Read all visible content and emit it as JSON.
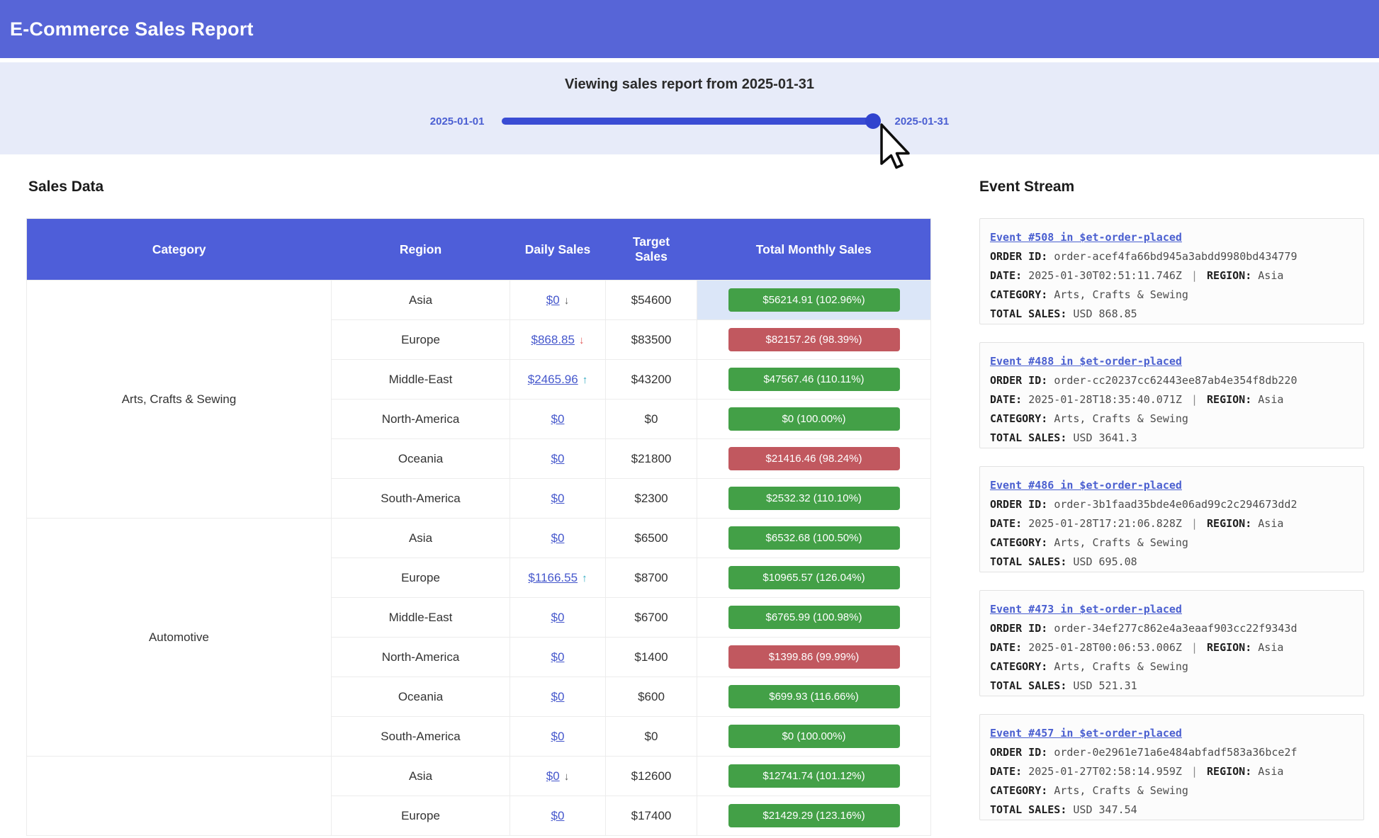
{
  "header": {
    "title": "E-Commerce Sales Report"
  },
  "slider": {
    "title": "Viewing sales report from 2025-01-31",
    "min_label": "2025-01-01",
    "max_label": "2025-01-31",
    "value": "2025-01-31"
  },
  "sales": {
    "heading": "Sales Data",
    "columns": [
      "Category",
      "Region",
      "Daily Sales",
      "Target Sales",
      "Total Monthly Sales"
    ],
    "categories": [
      {
        "label": "Arts, Crafts & Sewing",
        "start": 0,
        "span": 6
      },
      {
        "label": "Automotive",
        "start": 6,
        "span": 6
      },
      {
        "label": "",
        "start": 12,
        "span": 2
      }
    ],
    "rows": [
      {
        "region": "Asia",
        "daily": "$0",
        "trend": "down",
        "trend_color": "gray",
        "target": "$54600",
        "total": "$56214.91 (102.96%)",
        "status": "green",
        "highlight": true
      },
      {
        "region": "Europe",
        "daily": "$868.85",
        "trend": "down",
        "trend_color": "red",
        "target": "$83500",
        "total": "$82157.26 (98.39%)",
        "status": "red",
        "highlight": false
      },
      {
        "region": "Middle-East",
        "daily": "$2465.96",
        "trend": "up",
        "trend_color": "teal",
        "target": "$43200",
        "total": "$47567.46 (110.11%)",
        "status": "green",
        "highlight": false
      },
      {
        "region": "North-America",
        "daily": "$0",
        "trend": null,
        "trend_color": null,
        "target": "$0",
        "total": "$0 (100.00%)",
        "status": "green",
        "highlight": false
      },
      {
        "region": "Oceania",
        "daily": "$0",
        "trend": null,
        "trend_color": null,
        "target": "$21800",
        "total": "$21416.46 (98.24%)",
        "status": "red",
        "highlight": false
      },
      {
        "region": "South-America",
        "daily": "$0",
        "trend": null,
        "trend_color": null,
        "target": "$2300",
        "total": "$2532.32 (110.10%)",
        "status": "green",
        "highlight": false
      },
      {
        "region": "Asia",
        "daily": "$0",
        "trend": null,
        "trend_color": null,
        "target": "$6500",
        "total": "$6532.68 (100.50%)",
        "status": "green",
        "highlight": false
      },
      {
        "region": "Europe",
        "daily": "$1166.55",
        "trend": "up",
        "trend_color": "teal",
        "target": "$8700",
        "total": "$10965.57 (126.04%)",
        "status": "green",
        "highlight": false
      },
      {
        "region": "Middle-East",
        "daily": "$0",
        "trend": null,
        "trend_color": null,
        "target": "$6700",
        "total": "$6765.99 (100.98%)",
        "status": "green",
        "highlight": false
      },
      {
        "region": "North-America",
        "daily": "$0",
        "trend": null,
        "trend_color": null,
        "target": "$1400",
        "total": "$1399.86 (99.99%)",
        "status": "red",
        "highlight": false
      },
      {
        "region": "Oceania",
        "daily": "$0",
        "trend": null,
        "trend_color": null,
        "target": "$600",
        "total": "$699.93 (116.66%)",
        "status": "green",
        "highlight": false
      },
      {
        "region": "South-America",
        "daily": "$0",
        "trend": null,
        "trend_color": null,
        "target": "$0",
        "total": "$0 (100.00%)",
        "status": "green",
        "highlight": false
      },
      {
        "region": "Asia",
        "daily": "$0",
        "trend": "down",
        "trend_color": "gray",
        "target": "$12600",
        "total": "$12741.74 (101.12%)",
        "status": "green",
        "highlight": false
      },
      {
        "region": "Europe",
        "daily": "$0",
        "trend": null,
        "trend_color": null,
        "target": "$17400",
        "total": "$21429.29 (123.16%)",
        "status": "green",
        "highlight": false
      }
    ]
  },
  "events": {
    "heading": "Event Stream",
    "labels": {
      "order_id": "ORDER ID:",
      "date": "DATE:",
      "region": "REGION:",
      "category": "CATEGORY:",
      "total": "TOTAL SALES:",
      "sep": "|"
    },
    "items": [
      {
        "title": "Event #508 in $et-order-placed",
        "order_id": "order-acef4fa66bd945a3abdd9980bd434779",
        "date": "2025-01-30T02:51:11.746Z",
        "region": "Asia",
        "category": "Arts, Crafts & Sewing",
        "total": "USD 868.85"
      },
      {
        "title": "Event #488 in $et-order-placed",
        "order_id": "order-cc20237cc62443ee87ab4e354f8db220",
        "date": "2025-01-28T18:35:40.071Z",
        "region": "Asia",
        "category": "Arts, Crafts & Sewing",
        "total": "USD 3641.3"
      },
      {
        "title": "Event #486 in $et-order-placed",
        "order_id": "order-3b1faad35bde4e06ad99c2c294673dd2",
        "date": "2025-01-28T17:21:06.828Z",
        "region": "Asia",
        "category": "Arts, Crafts & Sewing",
        "total": "USD 695.08"
      },
      {
        "title": "Event #473 in $et-order-placed",
        "order_id": "order-34ef277c862e4a3eaaf903cc22f9343d",
        "date": "2025-01-28T00:06:53.006Z",
        "region": "Asia",
        "category": "Arts, Crafts & Sewing",
        "total": "USD 521.31"
      },
      {
        "title": "Event #457 in $et-order-placed",
        "order_id": "order-0e2961e71a6e484abfadf583a36bce2f",
        "date": "2025-01-27T02:58:14.959Z",
        "region": "Asia",
        "category": "Arts, Crafts & Sewing",
        "total": "USD 347.54"
      }
    ]
  },
  "colors": {
    "header_bg": "#5765d7",
    "band_bg": "#e7ebf9",
    "table_header_bg": "#4e5ed9",
    "green": "#43a047",
    "red": "#c1585f",
    "link": "#4557cc",
    "slider": "#3a4cd4",
    "highlight": "#dbe6f8",
    "event_link": "#4a5fd0"
  }
}
